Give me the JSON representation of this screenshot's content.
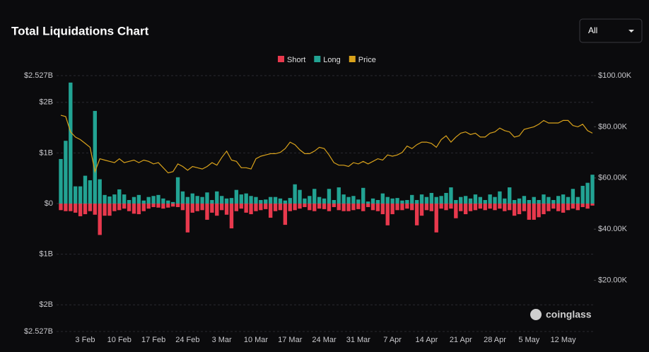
{
  "header": {
    "title": "Total Liquidations Chart",
    "filter": "All"
  },
  "watermark": "coinglass",
  "chart_data": {
    "type": "bar",
    "stacked": false,
    "grid": true,
    "categories": [
      null,
      null,
      null,
      null,
      null,
      "3 Feb",
      null,
      null,
      null,
      null,
      null,
      null,
      "10 Feb",
      null,
      null,
      null,
      null,
      null,
      null,
      "17 Feb",
      null,
      null,
      null,
      null,
      null,
      null,
      "24 Feb",
      null,
      null,
      null,
      null,
      null,
      null,
      "3 Mar",
      null,
      null,
      null,
      null,
      null,
      null,
      "10 Mar",
      null,
      null,
      null,
      null,
      null,
      null,
      "17 Mar",
      null,
      null,
      null,
      null,
      null,
      null,
      "24 Mar",
      null,
      null,
      null,
      null,
      null,
      null,
      "31 Mar",
      null,
      null,
      null,
      null,
      null,
      null,
      "7 Apr",
      null,
      null,
      null,
      null,
      null,
      null,
      "14 Apr",
      null,
      null,
      null,
      null,
      null,
      null,
      "21 Apr",
      null,
      null,
      null,
      null,
      null,
      null,
      "28 Apr",
      null,
      null,
      null,
      null,
      null,
      null,
      "5 May",
      null,
      null,
      null,
      null,
      null,
      null,
      "12 May",
      null,
      null,
      null,
      null,
      null,
      null
    ],
    "series": [
      {
        "name": "Short",
        "color": "#e8394d",
        "values": [
          -0.13,
          -0.15,
          -0.15,
          -0.18,
          -0.25,
          -0.21,
          -0.15,
          -0.22,
          -0.62,
          -0.24,
          -0.24,
          -0.15,
          -0.13,
          -0.1,
          -0.15,
          -0.2,
          -0.21,
          -0.15,
          -0.1,
          -0.07,
          -0.08,
          -0.1,
          -0.08,
          -0.06,
          -0.07,
          -0.13,
          -0.57,
          -0.18,
          -0.15,
          -0.13,
          -0.32,
          -0.18,
          -0.24,
          -0.13,
          -0.22,
          -0.49,
          -0.15,
          -0.1,
          -0.18,
          -0.21,
          -0.15,
          -0.13,
          -0.11,
          -0.28,
          -0.15,
          -0.13,
          -0.42,
          -0.15,
          -0.13,
          -0.1,
          -0.07,
          -0.13,
          -0.15,
          -0.1,
          -0.11,
          -0.15,
          -0.07,
          -0.13,
          -0.15,
          -0.15,
          -0.13,
          -0.11,
          -0.15,
          -0.07,
          -0.13,
          -0.15,
          -0.21,
          -0.43,
          -0.21,
          -0.13,
          -0.13,
          -0.1,
          -0.13,
          -0.43,
          -0.24,
          -0.13,
          -0.15,
          -0.57,
          -0.1,
          -0.13,
          -0.1,
          -0.29,
          -0.15,
          -0.21,
          -0.15,
          -0.13,
          -0.1,
          -0.13,
          -0.1,
          -0.13,
          -0.1,
          -0.15,
          -0.13,
          -0.24,
          -0.21,
          -0.15,
          -0.32,
          -0.32,
          -0.27,
          -0.21,
          -0.15,
          -0.1,
          -0.15,
          -0.18,
          -0.13,
          -0.1,
          -0.13,
          -0.07,
          -0.1,
          -0.04
        ]
      },
      {
        "name": "Long",
        "color": "#22a393",
        "values": [
          0.88,
          1.24,
          2.39,
          0.34,
          0.34,
          0.55,
          0.46,
          1.83,
          0.48,
          0.17,
          0.14,
          0.18,
          0.28,
          0.18,
          0.07,
          0.13,
          0.17,
          0.06,
          0.13,
          0.15,
          0.17,
          0.1,
          0.06,
          0.03,
          0.52,
          0.24,
          0.13,
          0.2,
          0.15,
          0.13,
          0.22,
          0.07,
          0.24,
          0.15,
          0.1,
          0.11,
          0.27,
          0.18,
          0.2,
          0.15,
          0.13,
          0.07,
          0.08,
          0.13,
          0.13,
          0.1,
          0.06,
          0.11,
          0.38,
          0.27,
          0.1,
          0.15,
          0.29,
          0.13,
          0.1,
          0.29,
          0.07,
          0.32,
          0.18,
          0.13,
          0.15,
          0.08,
          0.31,
          0.04,
          0.1,
          0.07,
          0.2,
          0.13,
          0.1,
          0.11,
          0.06,
          0.07,
          0.17,
          0.07,
          0.18,
          0.13,
          0.21,
          0.13,
          0.15,
          0.21,
          0.32,
          0.07,
          0.13,
          0.15,
          0.1,
          0.18,
          0.13,
          0.07,
          0.18,
          0.13,
          0.24,
          0.1,
          0.32,
          0.07,
          0.1,
          0.15,
          0.07,
          0.13,
          0.07,
          0.18,
          0.13,
          0.07,
          0.15,
          0.18,
          0.13,
          0.29,
          0.13,
          0.35,
          0.41,
          0.57
        ]
      },
      {
        "name": "Price",
        "color": "#d9a21b",
        "type": "line",
        "axis": "y2",
        "values": [
          84500,
          84000,
          78000,
          76000,
          75000,
          73500,
          72000,
          62500,
          67500,
          67000,
          66500,
          66000,
          67500,
          66000,
          66500,
          67000,
          66000,
          67000,
          66500,
          65500,
          66000,
          64000,
          62000,
          62500,
          65500,
          64500,
          63000,
          64500,
          64000,
          63500,
          64500,
          66000,
          65000,
          68000,
          70500,
          67000,
          66500,
          64000,
          64000,
          63500,
          67500,
          68500,
          69000,
          69500,
          69500,
          70000,
          71500,
          74000,
          73000,
          71000,
          69500,
          69500,
          70500,
          72000,
          71500,
          69000,
          66000,
          65000,
          65000,
          64500,
          66000,
          65500,
          66500,
          65500,
          66500,
          67500,
          67000,
          69000,
          68500,
          69000,
          70000,
          72500,
          71500,
          73000,
          74000,
          74000,
          73500,
          72000,
          75000,
          76500,
          74000,
          76000,
          77500,
          78000,
          77000,
          77500,
          76000,
          76000,
          77500,
          78000,
          79500,
          78500,
          78000,
          76000,
          76500,
          79000,
          79500,
          80000,
          81000,
          82500,
          81500,
          81500,
          81500,
          82500,
          82500,
          80500,
          80000,
          81000,
          78500,
          77500
        ]
      }
    ],
    "ylim": [
      -2.527,
      2.527
    ],
    "yticks": [
      {
        "value": 2.527,
        "label": "$2.527B"
      },
      {
        "value": 2,
        "label": "$2B"
      },
      {
        "value": 1,
        "label": "$1B"
      },
      {
        "value": 0,
        "label": "$0"
      },
      {
        "value": -1,
        "label": "$1B"
      },
      {
        "value": -2,
        "label": "$2B"
      },
      {
        "value": -2.527,
        "label": "$2.527B"
      }
    ],
    "y2lim": [
      0,
      100000
    ],
    "y2ticks": [
      {
        "value": 100000,
        "label": "$100.00K"
      },
      {
        "value": 80000,
        "label": "$80.00K"
      },
      {
        "value": 60000,
        "label": "$60.00K"
      },
      {
        "value": 40000,
        "label": "$40.00K"
      },
      {
        "value": 20000,
        "label": "$20.00K"
      }
    ]
  }
}
